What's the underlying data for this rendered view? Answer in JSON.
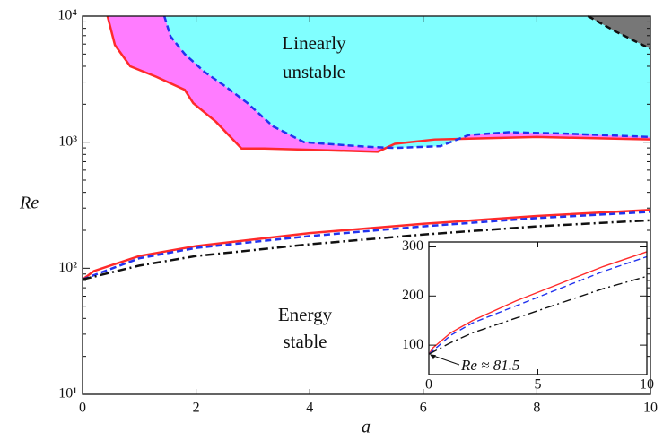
{
  "chart_data": [
    {
      "type": "line",
      "xlabel": "a",
      "ylabel": "Re",
      "xlim": [
        0,
        10
      ],
      "ylim": [
        10,
        10000
      ],
      "yscale": "log",
      "xticks": [
        0,
        2,
        4,
        6,
        8,
        10
      ],
      "yticks": [
        {
          "value": 10,
          "label": "10¹"
        },
        {
          "value": 100,
          "label": "10²"
        },
        {
          "value": 1000,
          "label": "10³"
        },
        {
          "value": 10000,
          "label": "10⁴"
        }
      ],
      "annotations": [
        "Linearly",
        "unstable",
        "Energy",
        "stable"
      ],
      "series": [
        {
          "color": "#ff2a2a",
          "dash": "solid",
          "fill": "#ff7cff",
          "x": [
            0.44,
            0.57,
            0.84,
            1.3,
            1.8,
            1.95,
            2.35,
            2.8,
            3.2,
            4,
            5.2,
            5.5,
            6.2,
            8,
            10
          ],
          "values": [
            10000,
            5900,
            4000,
            3300,
            2600,
            2040,
            1450,
            890,
            890,
            870,
            840,
            970,
            1050,
            1100,
            1050
          ]
        },
        {
          "color": "#2233ee",
          "dash": "dashed",
          "fill": "#80ffff",
          "x": [
            1.44,
            1.55,
            1.8,
            2.15,
            2.5,
            2.9,
            3.35,
            3.9,
            5,
            5.5,
            6.3,
            6.8,
            7.5,
            8.5,
            10
          ],
          "values": [
            10000,
            6900,
            5000,
            3600,
            2800,
            2050,
            1340,
            1000,
            920,
            900,
            930,
            1140,
            1200,
            1170,
            1100
          ]
        },
        {
          "color": "#111111",
          "dash": "dashed",
          "fill": "#777777",
          "x": [
            8.9,
            9.4,
            10
          ],
          "values": [
            10000,
            7500,
            5500
          ]
        },
        {
          "color": "#ff2a2a",
          "dash": "solid",
          "x": [
            0,
            0.2,
            1,
            2,
            4,
            6,
            8,
            10
          ],
          "values": [
            81.5,
            95,
            125,
            150,
            190,
            225,
            260,
            290
          ]
        },
        {
          "color": "#2233ee",
          "dash": "dashed",
          "x": [
            0,
            1,
            2,
            4,
            6,
            8,
            10
          ],
          "values": [
            81.5,
            120,
            145,
            180,
            215,
            250,
            280
          ]
        },
        {
          "color": "#111111",
          "dash": "dashdot",
          "x": [
            0,
            1,
            2,
            4,
            6,
            8,
            10
          ],
          "values": [
            81.5,
            105,
            125,
            155,
            185,
            215,
            240
          ]
        }
      ]
    },
    {
      "type": "line",
      "xlim": [
        0,
        10
      ],
      "ylim": [
        40,
        310
      ],
      "xticks": [
        0,
        5,
        10
      ],
      "yticks": [
        100,
        200,
        300
      ],
      "annotation": "Re ≈ 81.5",
      "series": [
        {
          "color": "#ff2a2a",
          "dash": "solid",
          "x": [
            0,
            0.2,
            1,
            2,
            4,
            6,
            8,
            10
          ],
          "values": [
            81.5,
            95,
            125,
            150,
            190,
            225,
            260,
            290
          ]
        },
        {
          "color": "#2233ee",
          "dash": "dashed",
          "x": [
            0,
            1,
            2,
            4,
            6,
            8,
            10
          ],
          "values": [
            81.5,
            120,
            145,
            180,
            215,
            250,
            280
          ]
        },
        {
          "color": "#111111",
          "dash": "dashdot",
          "x": [
            0,
            1,
            2,
            4,
            6,
            8,
            10
          ],
          "values": [
            81.5,
            105,
            125,
            155,
            185,
            215,
            240
          ]
        }
      ]
    }
  ]
}
